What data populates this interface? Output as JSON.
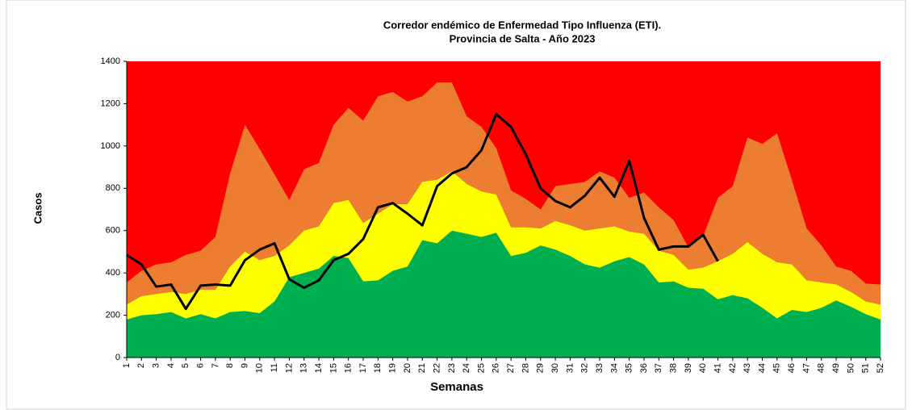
{
  "chart_data": {
    "type": "area",
    "title": "Corredor endémico de Enfermedad Tipo Influenza (ETI).",
    "subtitle": "Provincia de Salta - Año 2023",
    "x_label": "Semanas",
    "y_label": "Casos",
    "categories": [
      "1",
      "2",
      "3",
      "4",
      "5",
      "6",
      "7",
      "8",
      "9",
      "10",
      "11",
      "12",
      "13",
      "14",
      "15",
      "16",
      "17",
      "18",
      "19",
      "20",
      "21",
      "22",
      "23",
      "24",
      "25",
      "26",
      "27",
      "28",
      "29",
      "30",
      "31",
      "32",
      "33",
      "34",
      "35",
      "36",
      "37",
      "38",
      "39",
      "40",
      "41",
      "42",
      "43",
      "44",
      "45",
      "46",
      "47",
      "48",
      "49",
      "50",
      "51",
      "52"
    ],
    "background_color": "#ff0000",
    "series": [
      {
        "kind": "area",
        "color": "#ed7d31",
        "values": [
          355,
          410,
          440,
          450,
          485,
          505,
          570,
          870,
          1100,
          985,
          865,
          745,
          890,
          920,
          1100,
          1180,
          1120,
          1235,
          1255,
          1210,
          1235,
          1300,
          1300,
          1140,
          1090,
          990,
          790,
          750,
          700,
          810,
          820,
          830,
          880,
          850,
          755,
          780,
          710,
          650,
          520,
          575,
          755,
          810,
          1040,
          1010,
          1060,
          840,
          610,
          530,
          430,
          410,
          350,
          345
        ]
      },
      {
        "kind": "area",
        "color": "#ffff00",
        "values": [
          250,
          290,
          300,
          310,
          300,
          320,
          320,
          430,
          500,
          460,
          480,
          530,
          600,
          620,
          730,
          745,
          635,
          680,
          725,
          725,
          830,
          840,
          880,
          820,
          785,
          770,
          615,
          615,
          610,
          645,
          625,
          600,
          610,
          620,
          595,
          585,
          505,
          485,
          415,
          425,
          455,
          490,
          545,
          490,
          450,
          440,
          365,
          355,
          345,
          310,
          265,
          250
        ]
      },
      {
        "kind": "area",
        "color": "#00b050",
        "values": [
          180,
          200,
          205,
          215,
          185,
          205,
          185,
          215,
          220,
          210,
          265,
          380,
          400,
          420,
          480,
          470,
          360,
          365,
          410,
          430,
          555,
          540,
          600,
          585,
          570,
          590,
          480,
          495,
          530,
          510,
          480,
          440,
          425,
          455,
          475,
          440,
          355,
          360,
          330,
          325,
          275,
          295,
          280,
          235,
          185,
          225,
          215,
          235,
          270,
          240,
          205,
          180
        ]
      },
      {
        "kind": "line",
        "color": "#000000",
        "values": [
          485,
          440,
          335,
          345,
          230,
          340,
          345,
          340,
          460,
          510,
          540,
          370,
          330,
          365,
          460,
          490,
          560,
          710,
          730,
          680,
          625,
          810,
          870,
          900,
          980,
          1150,
          1090,
          960,
          800,
          740,
          710,
          765,
          850,
          760,
          930,
          660,
          510,
          525,
          525,
          580,
          455,
          null,
          null,
          null,
          null,
          null,
          null,
          null,
          null,
          null,
          null,
          null
        ]
      }
    ],
    "ylim": [
      0,
      1400
    ],
    "yticks": [
      0,
      200,
      400,
      600,
      800,
      1000,
      1200,
      1400
    ]
  }
}
